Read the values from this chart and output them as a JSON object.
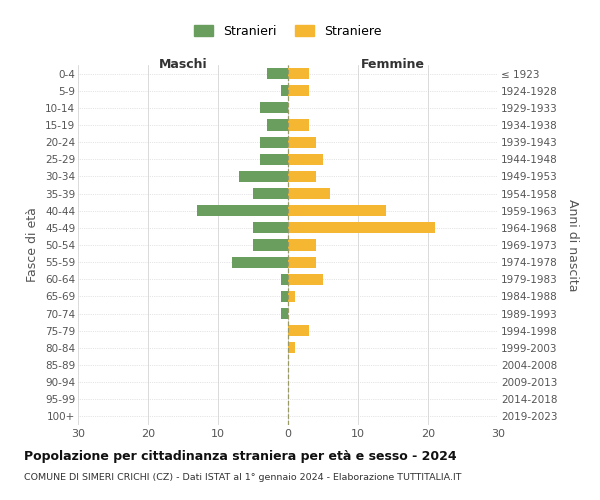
{
  "age_groups": [
    "0-4",
    "5-9",
    "10-14",
    "15-19",
    "20-24",
    "25-29",
    "30-34",
    "35-39",
    "40-44",
    "45-49",
    "50-54",
    "55-59",
    "60-64",
    "65-69",
    "70-74",
    "75-79",
    "80-84",
    "85-89",
    "90-94",
    "95-99",
    "100+"
  ],
  "birth_years": [
    "2019-2023",
    "2014-2018",
    "2009-2013",
    "2004-2008",
    "1999-2003",
    "1994-1998",
    "1989-1993",
    "1984-1988",
    "1979-1983",
    "1974-1978",
    "1969-1973",
    "1964-1968",
    "1959-1963",
    "1954-1958",
    "1949-1953",
    "1944-1948",
    "1939-1943",
    "1934-1938",
    "1929-1933",
    "1924-1928",
    "≤ 1923"
  ],
  "stranieri_maschi": [
    3,
    1,
    4,
    3,
    4,
    4,
    7,
    5,
    13,
    5,
    5,
    8,
    1,
    1,
    1,
    0,
    0,
    0,
    0,
    0,
    0
  ],
  "straniere_femmine": [
    3,
    3,
    0,
    3,
    4,
    5,
    4,
    6,
    14,
    21,
    4,
    4,
    5,
    1,
    0,
    3,
    1,
    0,
    0,
    0,
    0
  ],
  "color_maschi": "#6a9e5e",
  "color_femmine": "#f5b731",
  "xlim": 30,
  "title": "Popolazione per cittadinanza straniera per età e sesso - 2024",
  "subtitle": "COMUNE DI SIMERI CRICHI (CZ) - Dati ISTAT al 1° gennaio 2024 - Elaborazione TUTTITALIA.IT",
  "ylabel_left": "Fasce di età",
  "ylabel_right": "Anni di nascita",
  "label_maschi": "Maschi",
  "label_femmine": "Femmine",
  "legend_stranieri": "Stranieri",
  "legend_straniere": "Straniere",
  "tick_color": "#555555",
  "grid_color": "#cccccc",
  "background_color": "#ffffff"
}
